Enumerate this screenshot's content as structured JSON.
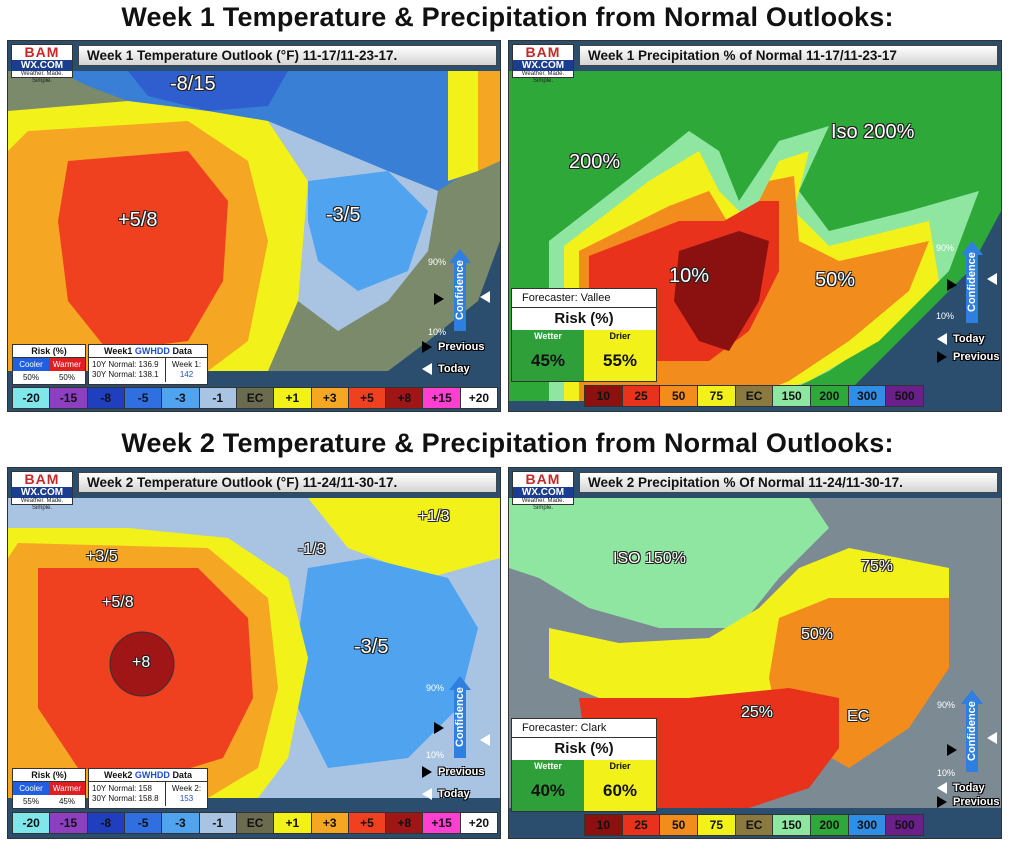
{
  "headings": {
    "week1": "Week 1 Temperature & Precipitation from Normal Outlooks:",
    "week2": "Week 2 Temperature & Precipitation from Normal Outlooks:"
  },
  "logo": {
    "brand_top": "BAM",
    "brand_mid": "WX.COM",
    "tagline": "Weather. Made. Simple."
  },
  "week1_temp": {
    "title": "Week 1 Temperature Outlook (°F) 11-17/11-23-17.",
    "labels": [
      "-8/15",
      "+5/8",
      "-3/5"
    ],
    "risk": {
      "title": "Risk (%)",
      "cooler_label": "Cooler",
      "warmer_label": "Warmer",
      "cooler": "50%",
      "warmer": "50%"
    },
    "gwhdd": {
      "title_prefix": "Week1",
      "title_brand": "GWHDD",
      "title_suffix": "Data",
      "normal10": "10Y Normal: 136.9",
      "normal30": "30Y Normal: 138.1",
      "week_label": "Week 1:",
      "week_value": "142"
    },
    "confidence": {
      "label": "Confidence",
      "top": "90%",
      "bottom": "10%"
    },
    "arrows": {
      "previous": "Previous",
      "today": "Today"
    }
  },
  "week1_precip": {
    "title": "Week 1 Precipitation % of Normal 11-17/11-23-17",
    "labels": [
      "200%",
      "Iso 200%",
      "10%",
      "50%"
    ],
    "forecaster": "Forecaster: Vallee",
    "risk_title": "Risk (%)",
    "wetter_label": "Wetter",
    "drier_label": "Drier",
    "wetter": "45%",
    "drier": "55%",
    "confidence": {
      "label": "Confidence",
      "top": "90%",
      "bottom": "10%"
    },
    "arrows": {
      "today": "Today",
      "previous": "Previous"
    }
  },
  "week2_temp": {
    "title": "Week 2 Temperature Outlook (°F) 11-24/11-30-17.",
    "labels": [
      "+3/5",
      "+5/8",
      "+8",
      "-1/3",
      "+1/3",
      "-3/5"
    ],
    "risk": {
      "title": "Risk (%)",
      "cooler_label": "Cooler",
      "warmer_label": "Warmer",
      "cooler": "55%",
      "warmer": "45%"
    },
    "gwhdd": {
      "title_prefix": "Week2",
      "title_brand": "GWHDD",
      "title_suffix": "Data",
      "normal10": "10Y Normal: 158",
      "normal30": "30Y Normal: 158.8",
      "week_label": "Week 2:",
      "week_value": "153"
    },
    "confidence": {
      "label": "Confidence",
      "top": "90%",
      "bottom": "10%"
    },
    "arrows": {
      "previous": "Previous",
      "today": "Today"
    }
  },
  "week2_precip": {
    "title": "Week 2 Precipitation % Of Normal 11-24/11-30-17.",
    "labels": [
      "ISO 150%",
      "75%",
      "50%",
      "25%",
      "EC"
    ],
    "forecaster": "Forecaster: Clark",
    "risk_title": "Risk (%)",
    "wetter_label": "Wetter",
    "drier_label": "Drier",
    "wetter": "40%",
    "drier": "60%",
    "confidence": {
      "label": "Confidence",
      "top": "90%",
      "bottom": "10%"
    },
    "arrows": {
      "today": "Today",
      "previous": "Previous"
    }
  },
  "temp_legend": [
    {
      "label": "-20",
      "color": "#7fe6ea"
    },
    {
      "label": "-15",
      "color": "#8e3fbf"
    },
    {
      "label": "-8",
      "color": "#1f3fbf"
    },
    {
      "label": "-5",
      "color": "#2f6fdf"
    },
    {
      "label": "-3",
      "color": "#4fa3ef"
    },
    {
      "label": "-1",
      "color": "#a9c4e3"
    },
    {
      "label": "EC",
      "color": "#6b6b4f"
    },
    {
      "label": "+1",
      "color": "#f2f21a"
    },
    {
      "label": "+3",
      "color": "#f5a623"
    },
    {
      "label": "+5",
      "color": "#ef4020"
    },
    {
      "label": "+8",
      "color": "#a01515"
    },
    {
      "label": "+15",
      "color": "#ff3fd0"
    },
    {
      "label": "+20",
      "color": "#ffffff"
    }
  ],
  "precip_legend": [
    {
      "label": "10",
      "color": "#8b1010"
    },
    {
      "label": "25",
      "color": "#e8321c"
    },
    {
      "label": "50",
      "color": "#f28c1c"
    },
    {
      "label": "75",
      "color": "#f2f21a"
    },
    {
      "label": "EC",
      "color": "#8a7a40"
    },
    {
      "label": "150",
      "color": "#8fe6a0"
    },
    {
      "label": "200",
      "color": "#2fa83a"
    },
    {
      "label": "300",
      "color": "#2f8fe6"
    },
    {
      "label": "500",
      "color": "#6a1f8a"
    }
  ],
  "colors": {
    "ocean": "#2b4d6e",
    "land_gray": "#7c8a93"
  }
}
